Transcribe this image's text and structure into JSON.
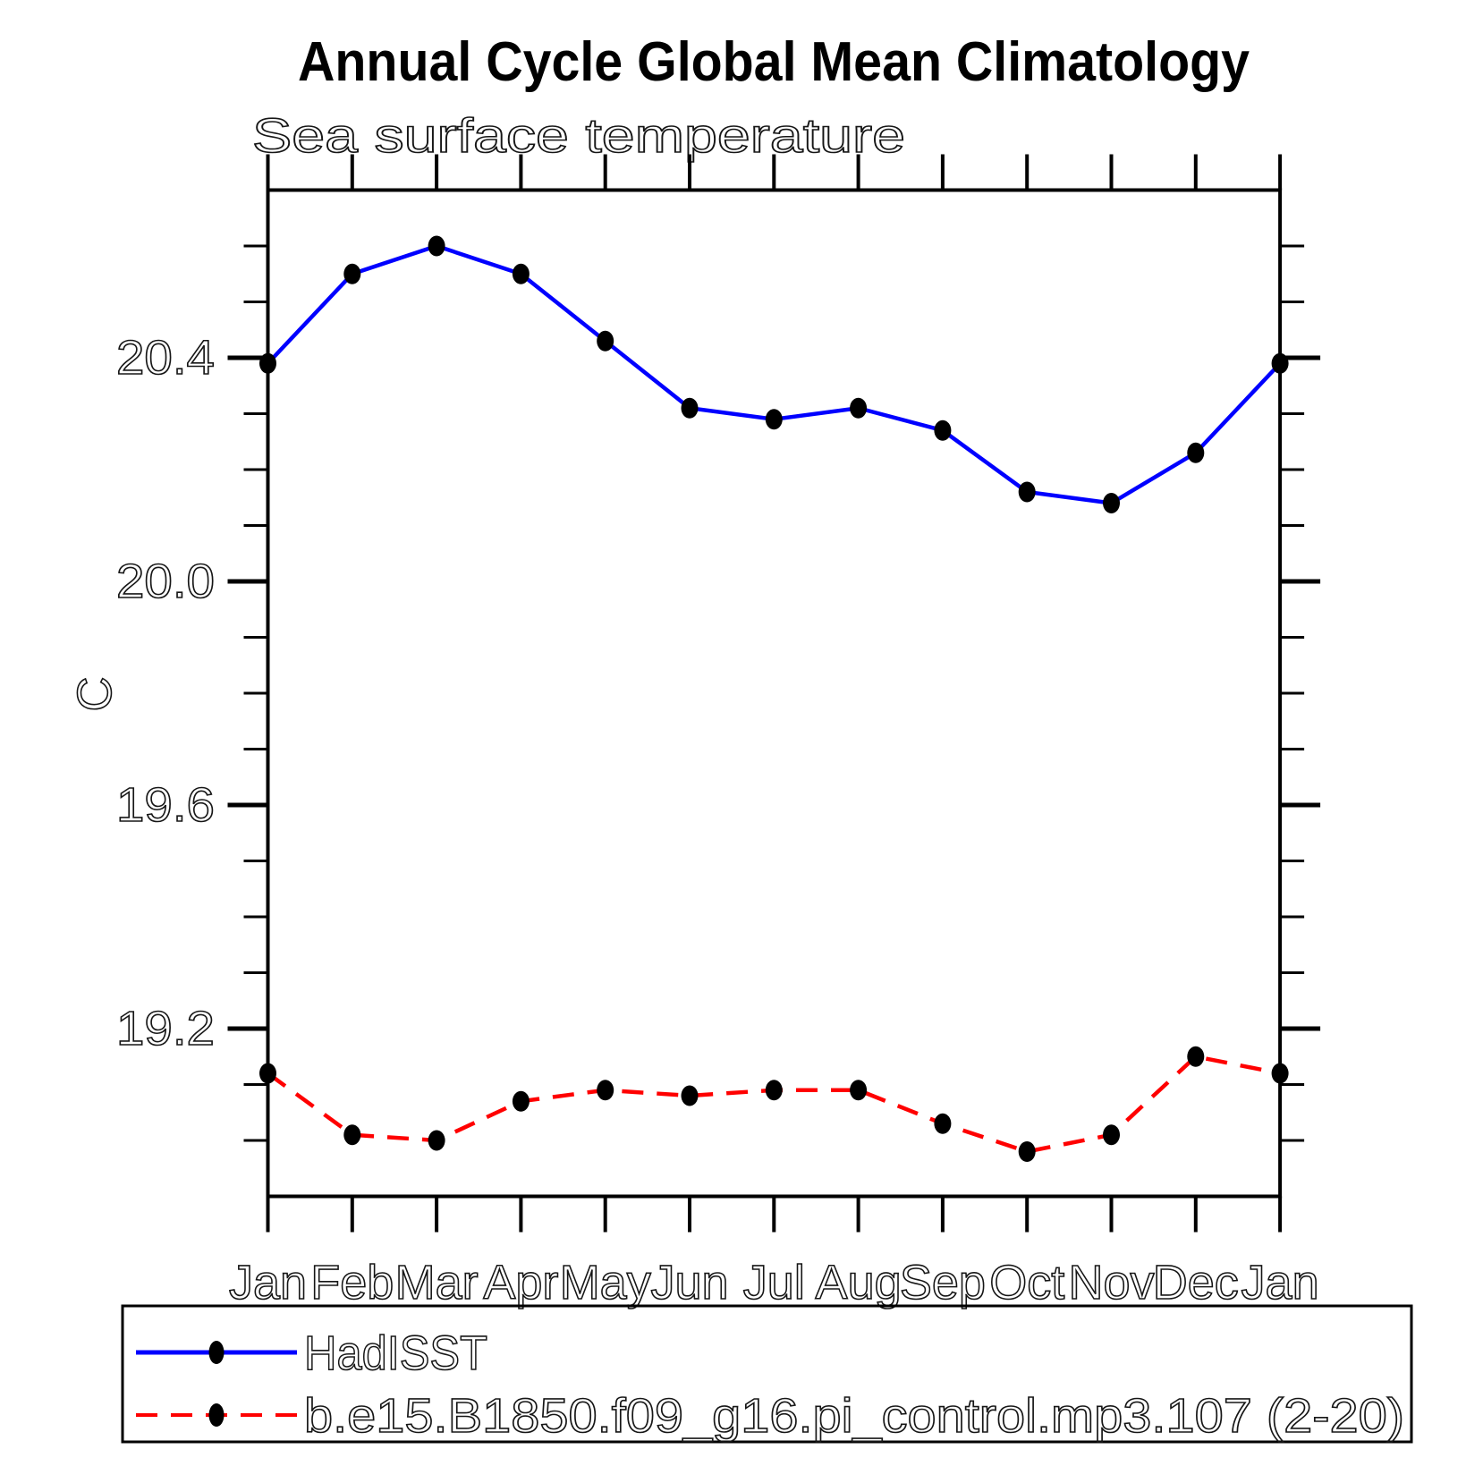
{
  "title": "Annual Cycle Global Mean Climatology",
  "subtitle": "Sea surface temperature",
  "y_axis": {
    "label": "C",
    "tick_labels": [
      "20.4",
      "20.0",
      "19.6",
      "19.2"
    ],
    "tick_values": [
      20.4,
      20.0,
      19.6,
      19.2
    ]
  },
  "x_axis": {
    "tick_labels": [
      "Jan",
      "Feb",
      "Mar",
      "Apr",
      "May",
      "Jun",
      "Jul",
      "Aug",
      "Sep",
      "Oct",
      "Nov",
      "Dec",
      "Jan"
    ]
  },
  "legend": {
    "items": [
      {
        "label": "HadISST",
        "color": "#0000ff",
        "line_style": "solid",
        "marker": "filled-circle"
      },
      {
        "label": "b.e15.B1850.f09_g16.pi_control.mp3.107 (2-20)",
        "color": "#ff0000",
        "line_style": "dashed",
        "marker": "filled-circle"
      }
    ]
  },
  "chart_data": {
    "type": "line",
    "title": "Annual Cycle Global Mean Climatology",
    "subtitle": "Sea surface temperature",
    "ylabel": "C",
    "categories": [
      "Jan",
      "Feb",
      "Mar",
      "Apr",
      "May",
      "Jun",
      "Jul",
      "Aug",
      "Sep",
      "Oct",
      "Nov",
      "Dec",
      "Jan"
    ],
    "series": [
      {
        "name": "HadISST",
        "color": "#0000ff",
        "line_style": "solid",
        "marker": "filled-circle",
        "values": [
          20.39,
          20.55,
          20.6,
          20.55,
          20.43,
          20.31,
          20.29,
          20.31,
          20.27,
          20.16,
          20.14,
          20.23,
          20.39
        ]
      },
      {
        "name": "b.e15.B1850.f09_g16.pi_control.mp3.107 (2-20)",
        "color": "#ff0000",
        "line_style": "dashed",
        "marker": "filled-circle",
        "values": [
          19.12,
          19.01,
          19.0,
          19.07,
          19.09,
          19.08,
          19.09,
          19.09,
          19.03,
          18.98,
          19.01,
          19.15,
          19.12
        ]
      }
    ],
    "ylim": [
      18.9,
      20.7
    ],
    "yticks_labeled": [
      19.2,
      19.6,
      20.0,
      20.4
    ],
    "minor_tick_step": 0.1,
    "grid": false,
    "legend_position": "bottom-left-box",
    "marker_color": "#000000"
  }
}
